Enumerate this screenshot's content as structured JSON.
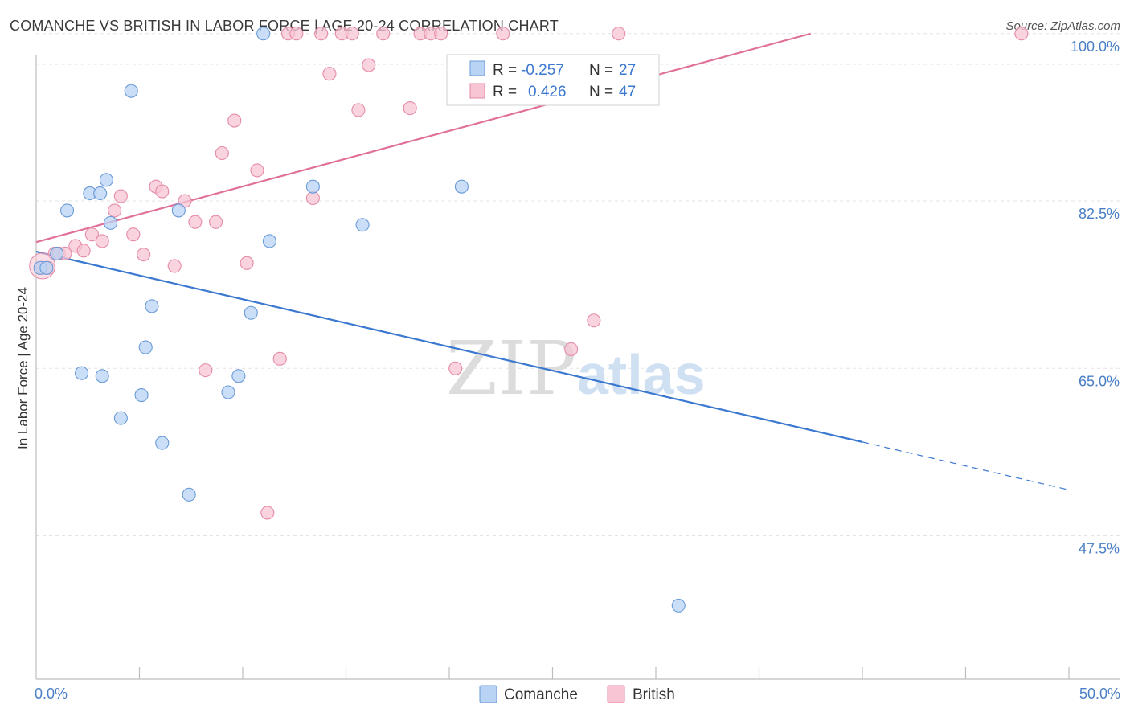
{
  "title": "COMANCHE VS BRITISH IN LABOR FORCE | AGE 20-24 CORRELATION CHART",
  "source": "Source: ZipAtlas.com",
  "watermark": {
    "zip": "ZIP",
    "atlas": "atlas"
  },
  "colors": {
    "comanche_fill": "#b9d3f4",
    "comanche_stroke": "#6a9bd8",
    "comanche_line": "#3b78d0",
    "british_fill": "#f7c5d3",
    "british_stroke": "#e58aa6",
    "british_line": "#e0709a",
    "axis_label": "#4a7fc6"
  },
  "stats": {
    "comanche": {
      "r_label": "R =",
      "r_value": "-0.257",
      "n_label": "N =",
      "n_value": "27"
    },
    "british": {
      "r_label": "R =",
      "r_value": "0.426",
      "n_label": "N =",
      "n_value": "47"
    }
  },
  "legend": {
    "comanche": "Comanche",
    "british": "British"
  },
  "chart_data": {
    "type": "scatter",
    "title": "COMANCHE VS BRITISH IN LABOR FORCE | AGE 20-24 CORRELATION CHART",
    "xlabel": "",
    "ylabel": "In Labor Force | Age 20-24",
    "xlim": [
      0,
      50
    ],
    "ylim": [
      32.5,
      102.5
    ],
    "x_tick_labels": [
      "0.0%",
      "50.0%"
    ],
    "y_ticks": [
      47.5,
      65.0,
      82.5,
      100.0
    ],
    "y_tick_labels": [
      "47.5%",
      "65.0%",
      "82.5%",
      "100.0%"
    ],
    "grid": true,
    "legend_position": "bottom-center",
    "series": [
      {
        "name": "Comanche",
        "points": [
          [
            0.2,
            75.5
          ],
          [
            1.0,
            77.0
          ],
          [
            1.5,
            81.5
          ],
          [
            2.2,
            64.5
          ],
          [
            2.6,
            83.3
          ],
          [
            3.1,
            83.3
          ],
          [
            3.2,
            64.2
          ],
          [
            3.4,
            84.7
          ],
          [
            3.6,
            80.2
          ],
          [
            4.1,
            59.8
          ],
          [
            4.6,
            94.0
          ],
          [
            5.1,
            62.2
          ],
          [
            5.3,
            67.2
          ],
          [
            5.6,
            71.5
          ],
          [
            6.1,
            57.2
          ],
          [
            6.9,
            81.5
          ],
          [
            7.4,
            51.8
          ],
          [
            9.3,
            62.5
          ],
          [
            9.8,
            64.2
          ],
          [
            10.4,
            70.8
          ],
          [
            11.0,
            100.0
          ],
          [
            11.3,
            78.3
          ],
          [
            13.4,
            84.0
          ],
          [
            15.8,
            80.0
          ],
          [
            20.6,
            84.0
          ],
          [
            31.1,
            40.2
          ],
          [
            0.5,
            75.5
          ]
        ],
        "trend": {
          "x": [
            0,
            40
          ],
          "y": [
            77.2,
            57.3
          ]
        },
        "trend_dashed": {
          "x": [
            40,
            50
          ],
          "y": [
            57.3,
            52.3
          ]
        }
      },
      {
        "name": "British",
        "points": [
          [
            0.3,
            75.5
          ],
          [
            0.9,
            77.0
          ],
          [
            1.1,
            77.0
          ],
          [
            1.9,
            77.8
          ],
          [
            2.3,
            77.3
          ],
          [
            2.7,
            79.0
          ],
          [
            3.2,
            78.3
          ],
          [
            3.8,
            81.5
          ],
          [
            4.1,
            83.0
          ],
          [
            4.7,
            79.0
          ],
          [
            5.2,
            76.9
          ],
          [
            5.8,
            84.0
          ],
          [
            6.1,
            83.5
          ],
          [
            6.7,
            75.7
          ],
          [
            7.2,
            82.5
          ],
          [
            7.7,
            80.3
          ],
          [
            8.2,
            64.8
          ],
          [
            8.7,
            80.3
          ],
          [
            9.0,
            87.5
          ],
          [
            9.6,
            90.9
          ],
          [
            10.2,
            76.0
          ],
          [
            10.7,
            85.7
          ],
          [
            11.2,
            49.9
          ],
          [
            11.8,
            66.0
          ],
          [
            12.2,
            100.0
          ],
          [
            12.6,
            100.0
          ],
          [
            13.4,
            82.8
          ],
          [
            13.8,
            100.0
          ],
          [
            14.2,
            95.8
          ],
          [
            14.8,
            100.0
          ],
          [
            15.3,
            100.0
          ],
          [
            15.6,
            92.0
          ],
          [
            16.1,
            96.7
          ],
          [
            16.8,
            100.0
          ],
          [
            18.1,
            92.2
          ],
          [
            18.6,
            100.0
          ],
          [
            19.1,
            100.0
          ],
          [
            19.6,
            100.0
          ],
          [
            20.3,
            65.0
          ],
          [
            22.1,
            94.0
          ],
          [
            22.6,
            100.0
          ],
          [
            25.9,
            67.0
          ],
          [
            27.0,
            70.0
          ],
          [
            28.2,
            100.0
          ],
          [
            47.7,
            100.0
          ],
          [
            0.6,
            75.5
          ],
          [
            1.4,
            77.0
          ]
        ],
        "trend": {
          "x": [
            0,
            37.5
          ],
          "y": [
            78.2,
            100.0
          ]
        }
      }
    ]
  }
}
